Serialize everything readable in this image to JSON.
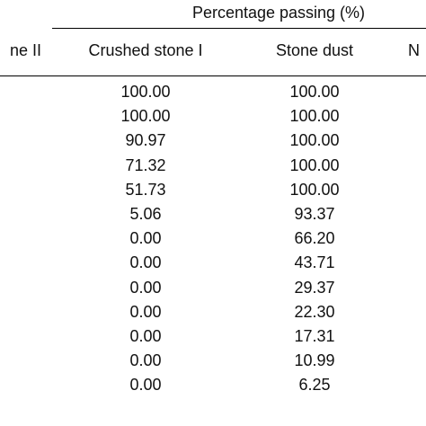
{
  "table": {
    "group_header": "Percentage passing (%)",
    "columns": [
      {
        "label": "ne II"
      },
      {
        "label": "Crushed stone I"
      },
      {
        "label": "Stone dust"
      },
      {
        "label": "N"
      }
    ],
    "rows": [
      {
        "crushed_stone_i": "100.00",
        "stone_dust": "100.00"
      },
      {
        "crushed_stone_i": "100.00",
        "stone_dust": "100.00"
      },
      {
        "crushed_stone_i": "90.97",
        "stone_dust": "100.00"
      },
      {
        "crushed_stone_i": "71.32",
        "stone_dust": "100.00"
      },
      {
        "crushed_stone_i": "51.73",
        "stone_dust": "100.00"
      },
      {
        "crushed_stone_i": "5.06",
        "stone_dust": "93.37"
      },
      {
        "crushed_stone_i": "0.00",
        "stone_dust": "66.20"
      },
      {
        "crushed_stone_i": "0.00",
        "stone_dust": "43.71"
      },
      {
        "crushed_stone_i": "0.00",
        "stone_dust": "29.37"
      },
      {
        "crushed_stone_i": "0.00",
        "stone_dust": "22.30"
      },
      {
        "crushed_stone_i": "0.00",
        "stone_dust": "17.31"
      },
      {
        "crushed_stone_i": "0.00",
        "stone_dust": "10.99"
      },
      {
        "crushed_stone_i": "0.00",
        "stone_dust": "6.25"
      }
    ]
  }
}
